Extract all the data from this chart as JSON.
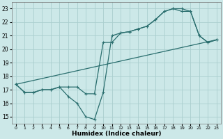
{
  "xlabel": "Humidex (Indice chaleur)",
  "background_color": "#cce8e8",
  "grid_color": "#aacece",
  "line_color": "#2a6e6e",
  "xlim": [
    -0.5,
    23.5
  ],
  "ylim": [
    14.5,
    23.5
  ],
  "yticks": [
    15,
    16,
    17,
    18,
    19,
    20,
    21,
    22,
    23
  ],
  "xticks": [
    0,
    1,
    2,
    3,
    4,
    5,
    6,
    7,
    8,
    9,
    10,
    11,
    12,
    13,
    14,
    15,
    16,
    17,
    18,
    19,
    20,
    21,
    22,
    23
  ],
  "line1_x": [
    0,
    1,
    2,
    3,
    4,
    5,
    6,
    7,
    8,
    9,
    10,
    11,
    12,
    13,
    14,
    15,
    16,
    17,
    18,
    19,
    20,
    21,
    22,
    23
  ],
  "line1_y": [
    17.4,
    16.8,
    16.8,
    17.0,
    17.0,
    17.2,
    17.2,
    17.2,
    16.7,
    16.7,
    20.5,
    20.5,
    21.2,
    21.3,
    21.5,
    21.7,
    22.2,
    22.8,
    23.0,
    23.0,
    22.8,
    21.0,
    20.5,
    20.7
  ],
  "line2_x": [
    0,
    1,
    2,
    3,
    4,
    5,
    6,
    7,
    8,
    9,
    10,
    11,
    12,
    13,
    14,
    15,
    16,
    17,
    18,
    19,
    20,
    21,
    22,
    23
  ],
  "line2_y": [
    17.4,
    16.8,
    16.8,
    17.0,
    17.0,
    17.2,
    16.5,
    16.0,
    15.0,
    14.8,
    16.8,
    21.0,
    21.2,
    21.3,
    21.5,
    21.7,
    22.2,
    22.8,
    23.0,
    22.8,
    22.8,
    21.0,
    20.5,
    20.7
  ],
  "line3_x": [
    0,
    23
  ],
  "line3_y": [
    17.4,
    20.7
  ]
}
